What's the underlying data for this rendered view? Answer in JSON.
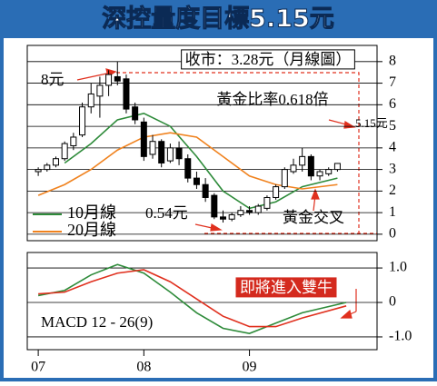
{
  "chart_data": [
    {
      "type": "candlestick",
      "title": "深控量度目標5.15元",
      "x": [
        0,
        1,
        2,
        3,
        4,
        5,
        6,
        7,
        8,
        9,
        10,
        11,
        12,
        13,
        14,
        15,
        16,
        17,
        18,
        19,
        20,
        21,
        22,
        23,
        24,
        25,
        26,
        27,
        28,
        29,
        30,
        31,
        32,
        33,
        34
      ],
      "open": [
        2.9,
        3.0,
        3.2,
        3.5,
        4.1,
        4.6,
        5.9,
        6.4,
        6.9,
        7.3,
        7.2,
        5.9,
        5.2,
        3.7,
        4.3,
        3.4,
        4.0,
        3.5,
        2.6,
        2.3,
        1.8,
        0.8,
        0.7,
        0.9,
        1.1,
        1.0,
        1.2,
        1.7,
        2.2,
        2.9,
        3.2,
        3.6,
        2.7,
        2.8,
        3.0
      ],
      "high": [
        3.1,
        3.3,
        3.6,
        4.3,
        4.7,
        6.1,
        7.0,
        7.3,
        7.6,
        8.0,
        7.4,
        6.1,
        5.4,
        4.6,
        4.4,
        4.2,
        4.3,
        3.7,
        2.9,
        2.6,
        1.9,
        1.1,
        1.0,
        1.3,
        1.3,
        1.4,
        1.8,
        2.3,
        3.1,
        3.5,
        4.0,
        3.7,
        3.0,
        3.1,
        3.3
      ],
      "low": [
        2.7,
        2.9,
        3.1,
        3.4,
        3.9,
        4.5,
        5.6,
        5.4,
        6.4,
        6.9,
        5.6,
        5.1,
        3.4,
        3.5,
        3.1,
        3.3,
        3.2,
        2.4,
        2.1,
        1.5,
        0.7,
        0.54,
        0.6,
        0.8,
        0.9,
        0.9,
        1.1,
        1.6,
        2.1,
        2.8,
        2.9,
        2.5,
        2.5,
        2.7,
        2.9
      ],
      "close": [
        3.0,
        3.2,
        3.5,
        4.2,
        4.5,
        5.9,
        6.5,
        6.9,
        7.4,
        7.1,
        5.8,
        5.3,
        3.6,
        4.3,
        3.3,
        4.0,
        3.5,
        2.6,
        2.3,
        1.7,
        0.8,
        0.7,
        0.9,
        1.1,
        1.0,
        1.3,
        1.7,
        2.2,
        3.0,
        3.2,
        3.6,
        2.7,
        2.9,
        3.0,
        3.28
      ],
      "series": [
        {
          "name": "10月線",
          "color": "#2e8b3a",
          "x": [
            3,
            6,
            9,
            12,
            15,
            18,
            21,
            24,
            27,
            30,
            34
          ],
          "values": [
            3.3,
            4.2,
            5.3,
            5.6,
            5.0,
            3.6,
            2.0,
            1.2,
            1.5,
            2.2,
            2.6
          ]
        },
        {
          "name": "20月線",
          "color": "#f0821e",
          "x": [
            0,
            3,
            6,
            9,
            12,
            15,
            18,
            21,
            24,
            27,
            30,
            34
          ],
          "values": [
            1.8,
            2.3,
            3.0,
            3.9,
            4.5,
            4.7,
            4.5,
            3.6,
            2.7,
            2.3,
            2.1,
            2.3
          ]
        }
      ],
      "xlim": [
        -1.25,
        38.5
      ],
      "ylim": [
        -0.3,
        8.75
      ],
      "yticks": [
        0,
        1,
        2,
        3,
        4,
        5,
        6,
        7,
        8
      ],
      "grid": true,
      "annotations": [
        "收市：3.28元（月線圖）",
        "8元",
        "黃金比率0.618倍",
        "5.15元",
        "0.54元",
        "黃金交叉"
      ]
    },
    {
      "type": "line",
      "series": [
        {
          "color": "#2e8b3a",
          "x": [
            0,
            3,
            6,
            9,
            12,
            15,
            18,
            21,
            24,
            27,
            30,
            35
          ],
          "values": [
            0.2,
            0.35,
            0.8,
            1.1,
            0.85,
            0.3,
            -0.3,
            -0.75,
            -0.9,
            -0.6,
            -0.3,
            0.0
          ]
        },
        {
          "color": "#e0301e",
          "x": [
            0,
            3,
            6,
            9,
            12,
            15,
            18,
            21,
            24,
            27,
            30,
            35
          ],
          "values": [
            0.25,
            0.3,
            0.6,
            0.85,
            0.95,
            0.6,
            0.1,
            -0.4,
            -0.7,
            -0.7,
            -0.45,
            -0.1
          ]
        }
      ],
      "xlim": [
        -1.25,
        38.5
      ],
      "ylim": [
        -1.37,
        1.45
      ],
      "yticks": [
        {
          "value": 1,
          "label": "1.0"
        },
        0,
        {
          "value": -1,
          "label": "-1.0"
        }
      ],
      "grid": true,
      "xticks": [
        {
          "value": 0,
          "label": "07"
        },
        {
          "value": 12,
          "label": "08"
        },
        {
          "value": 24,
          "label": "09"
        }
      ],
      "annotations": [
        "MACD 12 - 26(9)",
        "即將進入雙牛"
      ]
    }
  ]
}
